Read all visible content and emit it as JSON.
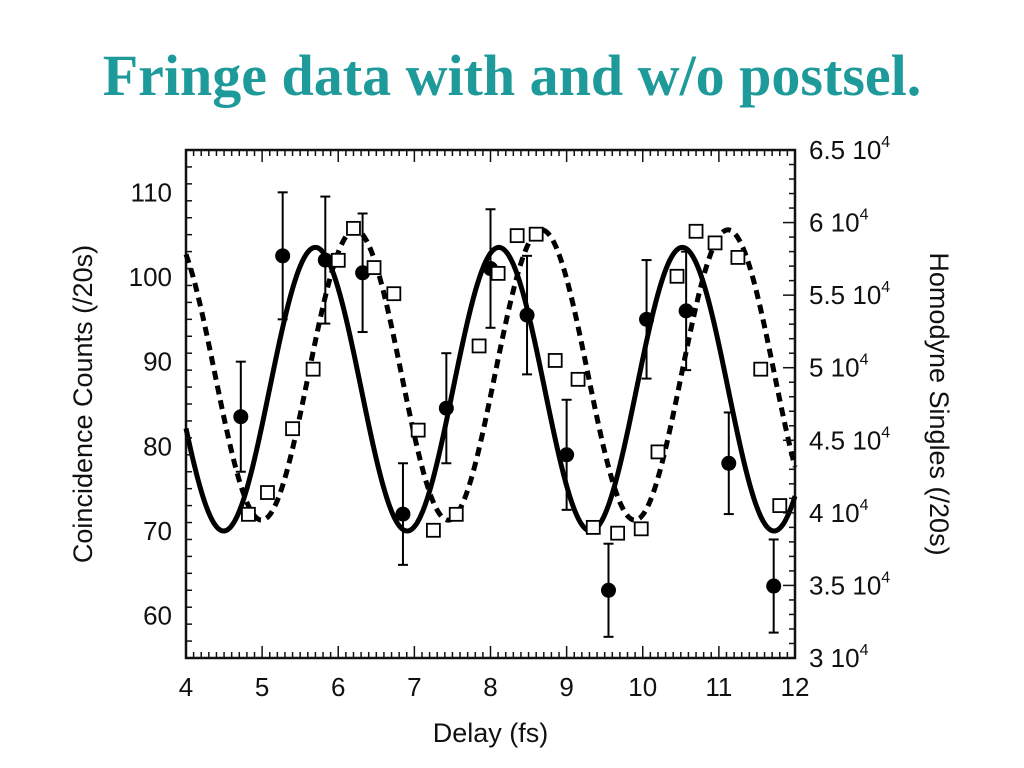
{
  "title": "Fringe data with and w/o postsel.",
  "chart_data": {
    "type": "scatter",
    "xlabel": "Delay (fs)",
    "ylabel_left": "Coincidence Counts (/20s)",
    "ylabel_right": "Homodyne Singles (/20s)",
    "xlim": [
      4,
      12
    ],
    "ylim_left": [
      55,
      115
    ],
    "ylim_right": [
      30000,
      65000
    ],
    "x_ticks": [
      "4",
      "5",
      "6",
      "7",
      "8",
      "9",
      "10",
      "11",
      "12"
    ],
    "y_left_ticks": [
      "60",
      "70",
      "80",
      "90",
      "100",
      "110"
    ],
    "y_right_ticks": [
      {
        "mantissa": "3",
        "value": 30000
      },
      {
        "mantissa": "3.5",
        "value": 35000
      },
      {
        "mantissa": "4",
        "value": 40000
      },
      {
        "mantissa": "4.5",
        "value": 45000
      },
      {
        "mantissa": "5",
        "value": 50000
      },
      {
        "mantissa": "5.5",
        "value": 55000
      },
      {
        "mantissa": "6",
        "value": 60000
      },
      {
        "mantissa": "6.5",
        "value": 65000
      }
    ],
    "tick_exponent": "4",
    "tick_base": "10",
    "series": [
      {
        "marker": "filled-circle",
        "axis": "left",
        "x": [
          4.72,
          5.27,
          5.83,
          6.32,
          6.85,
          7.42,
          8.0,
          8.48,
          9.0,
          9.55,
          10.05,
          10.57,
          11.13,
          11.72
        ],
        "y": [
          83.5,
          102.5,
          102,
          100.5,
          72,
          84.5,
          101,
          95.5,
          79,
          63,
          95,
          96,
          78,
          63.5
        ],
        "err": [
          6.5,
          7.5,
          7.5,
          7,
          6,
          6.5,
          7,
          7,
          6.5,
          5.5,
          7,
          7,
          6,
          5.5
        ]
      },
      {
        "marker": "open-square",
        "axis": "right",
        "x": [
          4.82,
          5.07,
          5.4,
          5.67,
          6.0,
          6.2,
          6.47,
          6.73,
          7.05,
          7.25,
          7.55,
          7.85,
          8.1,
          8.35,
          8.6,
          8.85,
          9.15,
          9.35,
          9.67,
          9.98,
          10.2,
          10.45,
          10.7,
          10.95,
          11.25,
          11.55,
          11.8
        ],
        "y": [
          39900,
          41400,
          45800,
          49900,
          57400,
          59600,
          56900,
          55100,
          45700,
          38800,
          39900,
          51500,
          56500,
          59100,
          59200,
          50500,
          49200,
          39000,
          38600,
          38900,
          44200,
          56300,
          59400,
          58600,
          57600,
          49900,
          40500
        ]
      },
      {
        "style": "solid-curve",
        "axis": "left",
        "mean": 86.75,
        "amplitude": 16.75,
        "period": 2.41,
        "phase_x": 5.7
      },
      {
        "style": "dashed-curve",
        "axis": "right",
        "mean": 49500,
        "amplitude": 10000,
        "period": 2.45,
        "phase_x": 6.22
      }
    ]
  }
}
